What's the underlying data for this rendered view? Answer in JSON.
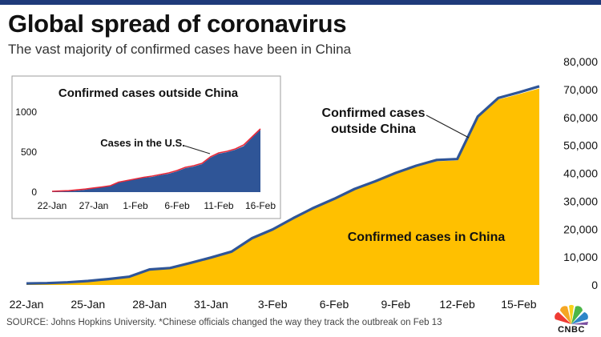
{
  "header": {
    "title": "Global spread of coronavirus",
    "subtitle": "The vast majority of confirmed cases have been in China"
  },
  "footer": {
    "source": "SOURCE: Johns Hopkins University. *Chinese officials changed the way they track the outbreak on Feb 13",
    "logo_text": "CNBC"
  },
  "colors": {
    "china_fill": "#FFC000",
    "outside_line": "#2F5597",
    "inset_fill": "#2F5597",
    "us_line": "#E8293A",
    "top_bar": "#1F3A7A"
  },
  "chart_data": [
    {
      "type": "area",
      "title": "",
      "xlabel": "",
      "ylabel": "",
      "x": [
        "22-Jan",
        "23-Jan",
        "24-Jan",
        "25-Jan",
        "26-Jan",
        "27-Jan",
        "28-Jan",
        "29-Jan",
        "30-Jan",
        "31-Jan",
        "1-Feb",
        "2-Feb",
        "3-Feb",
        "4-Feb",
        "5-Feb",
        "6-Feb",
        "7-Feb",
        "8-Feb",
        "9-Feb",
        "10-Feb",
        "11-Feb",
        "12-Feb",
        "13-Feb",
        "14-Feb",
        "15-Feb",
        "16-Feb"
      ],
      "x_tick_labels": [
        "22-Jan",
        "25-Jan",
        "28-Jan",
        "31-Jan",
        "3-Feb",
        "6-Feb",
        "9-Feb",
        "12-Feb",
        "15-Feb"
      ],
      "y_axis_side": "right",
      "y_ticks": [
        0,
        10000,
        20000,
        30000,
        40000,
        50000,
        60000,
        70000,
        80000
      ],
      "y_tick_labels": [
        "0",
        "10,000",
        "20,000",
        "30,000",
        "40,000",
        "50,000",
        "60,000",
        "70,000",
        "80,000"
      ],
      "ylim": [
        0,
        80000
      ],
      "grid": false,
      "series": [
        {
          "name": "Confirmed cases in China",
          "values": [
            550,
            640,
            920,
            1400,
            2100,
            2900,
            5500,
            6000,
            7800,
            9700,
            11800,
            16600,
            19700,
            23700,
            27400,
            30600,
            34100,
            36800,
            39800,
            42300,
            44300,
            44600,
            59800,
            66400,
            68300,
            70400
          ]
        },
        {
          "name": "Confirmed cases outside China",
          "values": [
            5,
            8,
            12,
            20,
            30,
            50,
            62,
            78,
            120,
            140,
            160,
            180,
            190,
            212,
            230,
            260,
            300,
            320,
            350,
            430,
            480,
            500,
            530,
            575,
            680,
            780
          ]
        }
      ],
      "annotations": [
        {
          "text": "Confirmed cases in China"
        },
        {
          "text": "Confirmed cases outside China",
          "lines": [
            "Confirmed cases",
            "outside China"
          ]
        }
      ]
    },
    {
      "type": "area",
      "title": "Confirmed cases outside China",
      "xlabel": "",
      "ylabel": "",
      "x": [
        "22-Jan",
        "23-Jan",
        "24-Jan",
        "25-Jan",
        "26-Jan",
        "27-Jan",
        "28-Jan",
        "29-Jan",
        "30-Jan",
        "31-Jan",
        "1-Feb",
        "2-Feb",
        "3-Feb",
        "4-Feb",
        "5-Feb",
        "6-Feb",
        "7-Feb",
        "8-Feb",
        "9-Feb",
        "10-Feb",
        "11-Feb",
        "12-Feb",
        "13-Feb",
        "14-Feb",
        "15-Feb",
        "16-Feb"
      ],
      "x_tick_labels": [
        "22-Jan",
        "27-Jan",
        "1-Feb",
        "6-Feb",
        "11-Feb",
        "16-Feb"
      ],
      "y_ticks": [
        0,
        500,
        1000
      ],
      "y_tick_labels": [
        "0",
        "500",
        "1000"
      ],
      "ylim": [
        0,
        1100
      ],
      "grid": false,
      "series": [
        {
          "name": "Cases in the U.S.",
          "values": [
            10,
            14,
            18,
            28,
            38,
            52,
            65,
            80,
            125,
            145,
            165,
            185,
            200,
            220,
            240,
            270,
            310,
            330,
            360,
            440,
            490,
            510,
            540,
            590,
            690,
            790
          ]
        },
        {
          "name": "Confirmed cases outside China",
          "values": [
            5,
            8,
            12,
            20,
            30,
            50,
            62,
            78,
            120,
            140,
            160,
            180,
            190,
            212,
            230,
            260,
            300,
            320,
            350,
            430,
            480,
            500,
            530,
            575,
            680,
            780
          ]
        }
      ],
      "annotations": [
        {
          "text": "Cases in the U.S."
        }
      ]
    }
  ]
}
